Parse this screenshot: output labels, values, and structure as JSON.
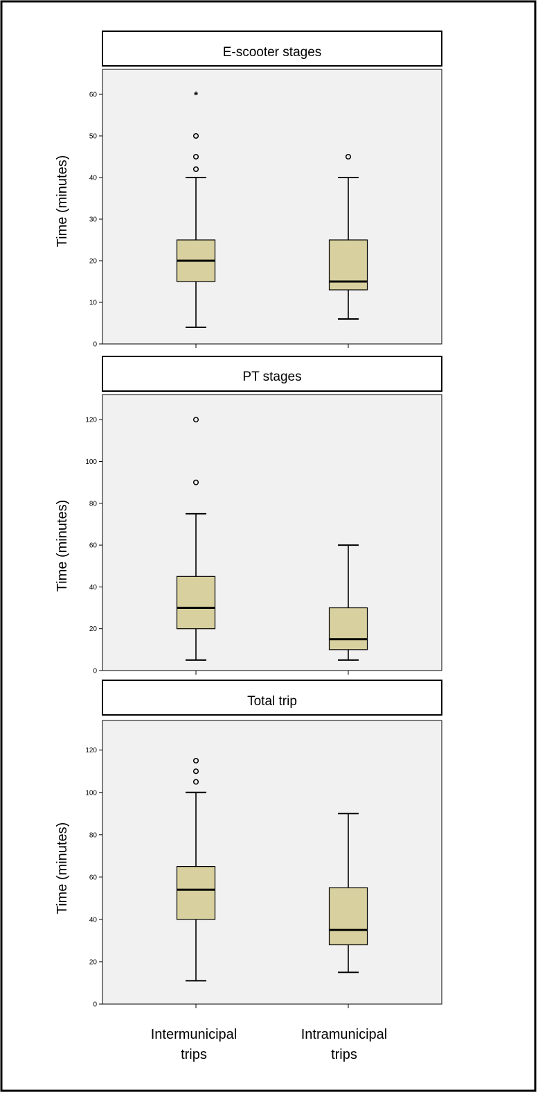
{
  "x_labels": [
    {
      "line1": "Intermunicipal",
      "line2": "trips"
    },
    {
      "line1": "Intramunicipal",
      "line2": "trips"
    }
  ],
  "colors": {
    "box_fill": "#d8d09e",
    "plot_bg": "#f1f1f1",
    "stroke": "#000000",
    "frame_border": "#000000"
  },
  "chart_data": [
    {
      "type": "boxplot",
      "title": "E-scooter stages",
      "ylabel": "Time (minutes)",
      "ylim": [
        0,
        66
      ],
      "yticks": [
        0,
        10,
        20,
        30,
        40,
        50,
        60
      ],
      "grid": false,
      "categories": [
        "Intermunicipal trips",
        "Intramunicipal trips"
      ],
      "boxes": [
        {
          "whisker_low": 4,
          "q1": 15,
          "median": 20,
          "q3": 25,
          "whisker_high": 40,
          "outliers": [
            42,
            45,
            50
          ],
          "extremes": [
            60
          ]
        },
        {
          "whisker_low": 6,
          "q1": 13,
          "median": 15,
          "q3": 25,
          "whisker_high": 40,
          "outliers": [
            45
          ],
          "extremes": []
        }
      ]
    },
    {
      "type": "boxplot",
      "title": "PT stages",
      "ylabel": "Time (minutes)",
      "ylim": [
        0,
        132
      ],
      "yticks": [
        0,
        20,
        40,
        60,
        80,
        100,
        120
      ],
      "grid": false,
      "categories": [
        "Intermunicipal trips",
        "Intramunicipal trips"
      ],
      "boxes": [
        {
          "whisker_low": 5,
          "q1": 20,
          "median": 30,
          "q3": 45,
          "whisker_high": 75,
          "outliers": [
            90,
            120
          ],
          "extremes": []
        },
        {
          "whisker_low": 5,
          "q1": 10,
          "median": 15,
          "q3": 30,
          "whisker_high": 60,
          "outliers": [],
          "extremes": []
        }
      ]
    },
    {
      "type": "boxplot",
      "title": "Total  trip",
      "ylabel": "Time (minutes)",
      "ylim": [
        0,
        134
      ],
      "yticks": [
        0,
        20,
        40,
        60,
        80,
        100,
        120
      ],
      "grid": false,
      "categories": [
        "Intermunicipal trips",
        "Intramunicipal trips"
      ],
      "boxes": [
        {
          "whisker_low": 11,
          "q1": 40,
          "median": 54,
          "q3": 65,
          "whisker_high": 100,
          "outliers": [
            105,
            110,
            115
          ],
          "extremes": []
        },
        {
          "whisker_low": 15,
          "q1": 28,
          "median": 35,
          "q3": 55,
          "whisker_high": 90,
          "outliers": [],
          "extremes": []
        }
      ]
    }
  ]
}
